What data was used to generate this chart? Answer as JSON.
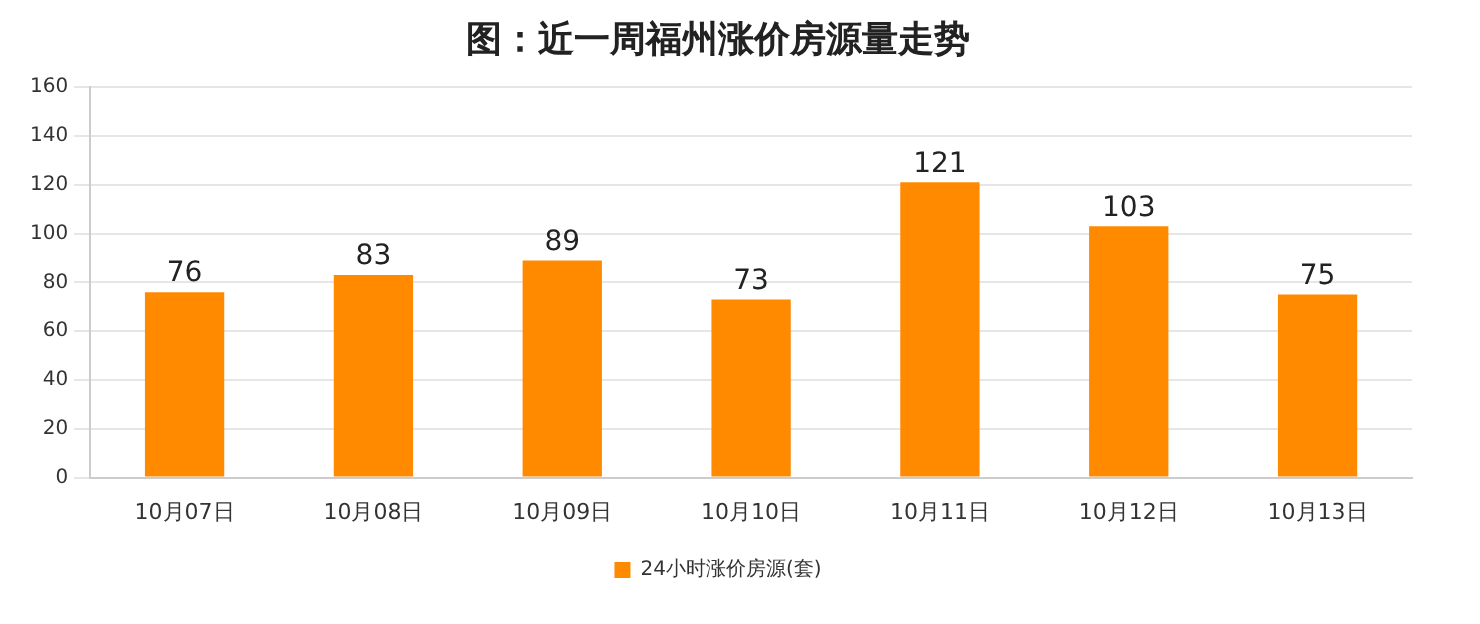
{
  "chart_data": {
    "type": "bar",
    "title": "图：近一周福州涨价房源量走势",
    "categories": [
      "10月07日",
      "10月08日",
      "10月09日",
      "10月10日",
      "10月11日",
      "10月12日",
      "10月13日"
    ],
    "series": [
      {
        "name": "24小时涨价房源(套)",
        "color": "#ff8a00",
        "values": [
          76,
          83,
          89,
          73,
          121,
          103,
          75
        ]
      }
    ],
    "ylim": [
      0,
      160
    ],
    "yticks": [
      0,
      20,
      40,
      60,
      80,
      100,
      120,
      140,
      160
    ],
    "grid": "y",
    "legend": "bottom",
    "data_labels": true
  }
}
